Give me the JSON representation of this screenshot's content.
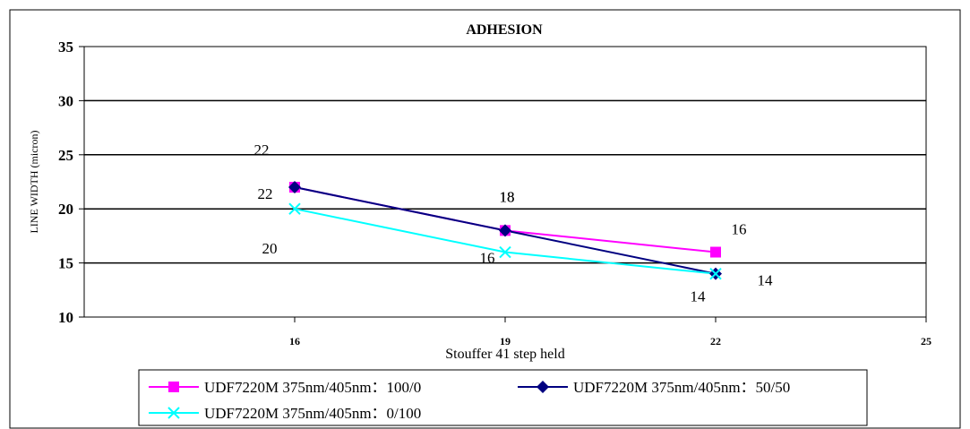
{
  "chart_data": {
    "type": "line",
    "title": "ADHESION",
    "xlabel": "Stouffer 41 step held",
    "ylabel": "LINE WIDTH (micron)",
    "x_ticks": [
      16,
      19,
      22,
      25
    ],
    "xlim": [
      13,
      25
    ],
    "ylim": [
      10,
      35
    ],
    "y_ticks": [
      10,
      15,
      20,
      25,
      30,
      35
    ],
    "grid": "horizontal",
    "legend_position": "bottom",
    "series": [
      {
        "name": "UDF7220M 375nm/405nm：100/0",
        "color": "#ff00ff",
        "marker": "square",
        "x": [
          16,
          19,
          22
        ],
        "values": [
          22,
          18,
          16
        ],
        "labels": [
          "22",
          "18",
          "16"
        ]
      },
      {
        "name": "UDF7220M 375nm/405nm：50/50",
        "color": "#000080",
        "marker": "diamond",
        "x": [
          16,
          19,
          22
        ],
        "values": [
          22,
          18,
          14
        ],
        "labels": [
          "22",
          "18",
          "14"
        ]
      },
      {
        "name": "UDF7220M 375nm/405nm：0/100",
        "color": "#00ffff",
        "marker": "x",
        "x": [
          16,
          19,
          22
        ],
        "values": [
          20,
          16,
          14
        ],
        "labels": [
          "20",
          "16",
          "14"
        ]
      }
    ]
  }
}
